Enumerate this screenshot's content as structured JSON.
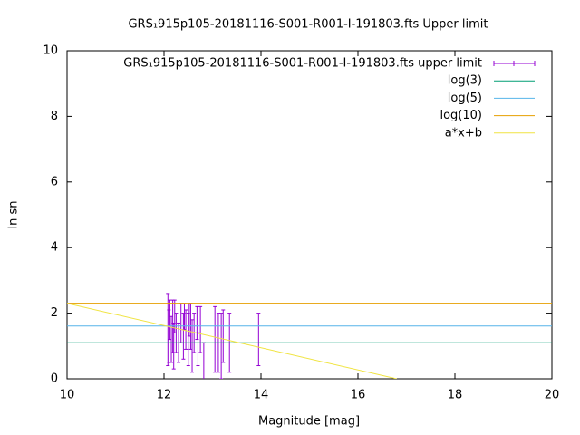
{
  "chart_data": {
    "type": "scatter",
    "title": "GRS₁915p105-20181116-S001-R001-I-191803.fts Upper limit",
    "x_label": "Magnitude [mag]",
    "y_label": "ln sn",
    "xlim": [
      10,
      20
    ],
    "ylim": [
      0,
      10
    ],
    "xticks": [
      10,
      12,
      14,
      16,
      18,
      20
    ],
    "yticks": [
      0,
      2,
      4,
      6,
      8,
      10
    ],
    "legend": "upper-right",
    "series": [
      {
        "name": "GRS₁915p105-20181116-S001-R001-I-191803.fts upper limit",
        "color": "#9400d3",
        "x": [
          12.08,
          12.1,
          12.12,
          12.15,
          12.18,
          12.2,
          12.22,
          12.25,
          12.3,
          12.35,
          12.4,
          12.42,
          12.45,
          12.5,
          12.52,
          12.55,
          12.58,
          12.62,
          12.68,
          12.7,
          12.75,
          12.82,
          13.05,
          13.12,
          13.18,
          13.22,
          13.35,
          13.95
        ],
        "values": [
          1.5,
          1.3,
          1.8,
          1.2,
          1.6,
          1.0,
          1.9,
          1.4,
          1.1,
          1.7,
          1.3,
          1.9,
          1.5,
          1.2,
          1.8,
          1.6,
          1.0,
          1.4,
          1.7,
          0.9,
          1.5,
          0.4,
          1.2,
          1.1,
          1.0,
          1.3,
          1.1,
          1.2
        ],
        "errors": [
          1.1,
          0.8,
          0.6,
          0.7,
          0.8,
          0.7,
          0.5,
          0.6,
          0.6,
          0.6,
          0.7,
          0.4,
          0.6,
          0.8,
          0.5,
          0.7,
          0.8,
          0.6,
          0.5,
          0.5,
          0.7,
          0.7,
          1.0,
          0.9,
          1.0,
          0.8,
          0.9,
          0.8
        ]
      },
      {
        "name": "log(3)",
        "color": "#009e73",
        "x": [
          10,
          20
        ],
        "values": [
          1.0986,
          1.0986
        ]
      },
      {
        "name": "log(5)",
        "color": "#56b4e9",
        "x": [
          10,
          20
        ],
        "values": [
          1.6094,
          1.6094
        ]
      },
      {
        "name": "log(10)",
        "color": "#e69f00",
        "x": [
          10,
          20
        ],
        "values": [
          2.3026,
          2.3026
        ]
      },
      {
        "name": "a*x+b",
        "color": "#f0e442",
        "x": [
          10,
          16.8
        ],
        "values": [
          2.3,
          0
        ]
      }
    ]
  }
}
